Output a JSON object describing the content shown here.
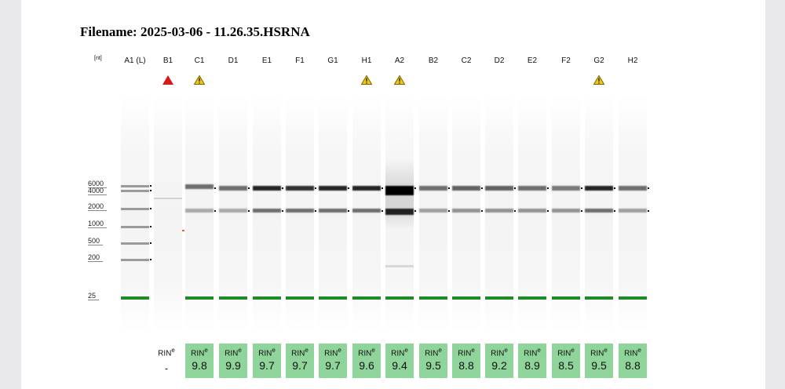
{
  "filename": "Filename: 2025-03-06 - 11.26.35.HSRNA",
  "unit_label": "[nt]",
  "ladder_ticks": [
    "6000",
    "4000",
    "2000",
    "1000",
    "500",
    "200",
    "25"
  ],
  "rin_label": "RIN",
  "rin_sup": "e",
  "colors": {
    "rin_box": "#8fd49a",
    "marker": "#1f8a28",
    "error_icon": "#d7191c",
    "warning_icon": "#f3c613"
  },
  "lanes": [
    {
      "label": "A1 (L)",
      "alert": "",
      "rin": ""
    },
    {
      "label": "B1",
      "alert": "error-icon",
      "rin": "-"
    },
    {
      "label": "C1",
      "alert": "warning-icon",
      "rin": "9.8"
    },
    {
      "label": "D1",
      "alert": "",
      "rin": "9.9"
    },
    {
      "label": "E1",
      "alert": "",
      "rin": "9.7"
    },
    {
      "label": "F1",
      "alert": "",
      "rin": "9.7"
    },
    {
      "label": "G1",
      "alert": "",
      "rin": "9.7"
    },
    {
      "label": "H1",
      "alert": "warning-icon",
      "rin": "9.6"
    },
    {
      "label": "A2",
      "alert": "warning-icon",
      "rin": "9.4"
    },
    {
      "label": "B2",
      "alert": "",
      "rin": "9.5"
    },
    {
      "label": "C2",
      "alert": "",
      "rin": "8.8"
    },
    {
      "label": "D2",
      "alert": "",
      "rin": "9.2"
    },
    {
      "label": "E2",
      "alert": "",
      "rin": "8.9"
    },
    {
      "label": "F2",
      "alert": "",
      "rin": "8.5"
    },
    {
      "label": "G2",
      "alert": "warning-icon",
      "rin": "9.5"
    },
    {
      "label": "H2",
      "alert": "",
      "rin": "8.8"
    }
  ]
}
